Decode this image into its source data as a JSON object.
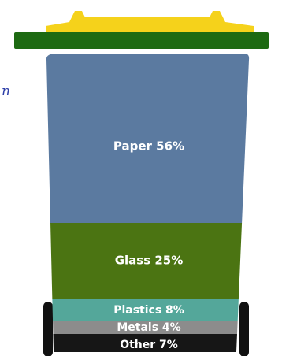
{
  "chart_data": {
    "type": "bar",
    "stacked": true,
    "unit": "%",
    "categories": [
      "Paper",
      "Glass",
      "Plastics",
      "Metals",
      "Other"
    ],
    "values": [
      56,
      25,
      8,
      4,
      7
    ],
    "labels": [
      "Paper 56%",
      "Glass 25%",
      "Plastics 8%",
      "Metals 4%",
      "Other 7%"
    ],
    "colors": [
      "#5b7aa0",
      "#4b7412",
      "#54a79a",
      "#8c8c8c",
      "#161616"
    ]
  },
  "bin": {
    "lid_color": "#f5d21b",
    "rim_color": "#1d6a12",
    "wheel_color": "#111111"
  },
  "cropped_text": {
    "left_edge_fragment": "n"
  }
}
